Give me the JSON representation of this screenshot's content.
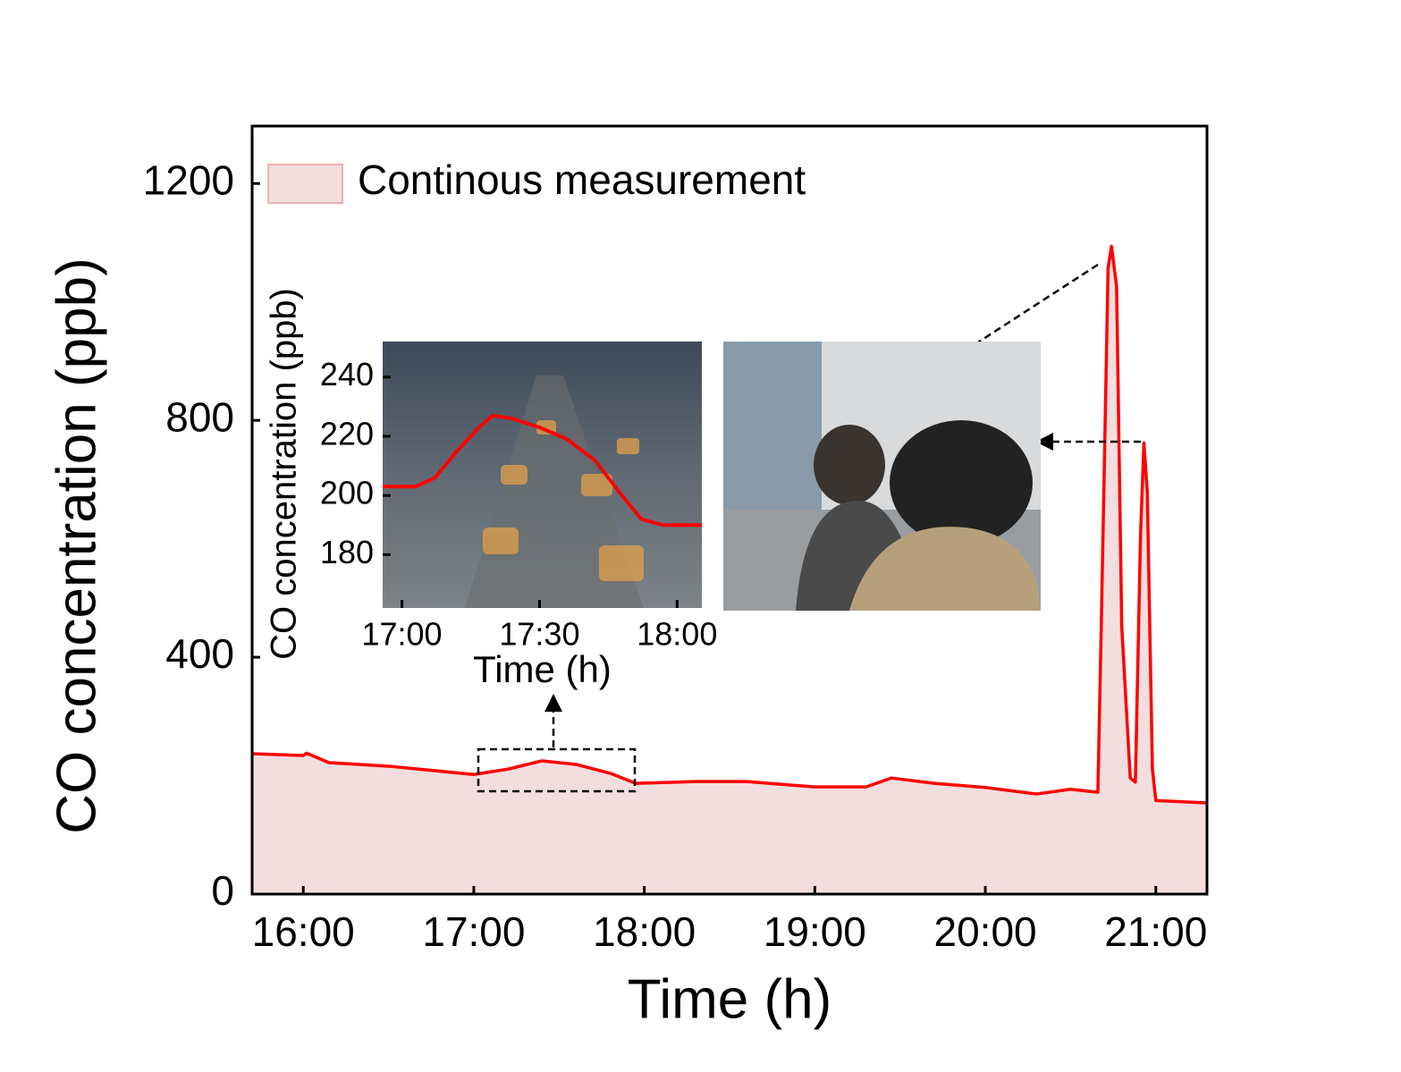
{
  "chart_data": [
    {
      "type": "area",
      "xlabel": "Time (h)",
      "ylabel": "CO concentration (ppb)",
      "xlim": [
        15.7,
        21.3
      ],
      "ylim": [
        0,
        1297
      ],
      "xticks": [
        {
          "value": 16,
          "label": "16:00"
        },
        {
          "value": 17,
          "label": "17:00"
        },
        {
          "value": 18,
          "label": "18:00"
        },
        {
          "value": 19,
          "label": "19:00"
        },
        {
          "value": 20,
          "label": "20:00"
        },
        {
          "value": 21,
          "label": "21:00"
        }
      ],
      "yticks": [
        0,
        400,
        800,
        1200
      ],
      "legend": "upper left",
      "series": [
        {
          "name": "Continous measurement",
          "color": "#ff0000",
          "fill": "#f2dede",
          "x": [
            15.7,
            16.0,
            16.02,
            16.15,
            16.5,
            17.0,
            17.2,
            17.4,
            17.6,
            17.8,
            17.95,
            18.3,
            18.6,
            19.0,
            19.3,
            19.45,
            19.7,
            20.0,
            20.3,
            20.5,
            20.66,
            20.68,
            20.72,
            20.74,
            20.77,
            20.8,
            20.85,
            20.88,
            20.91,
            20.93,
            20.95,
            20.98,
            21.0,
            21.3
          ],
          "values": [
            237,
            234,
            238,
            222,
            216,
            202,
            211,
            225,
            219,
            204,
            187,
            190,
            190,
            181,
            181,
            196,
            187,
            180,
            169,
            177,
            172,
            453,
            1057,
            1094,
            1026,
            453,
            196,
            189,
            604,
            762,
            679,
            211,
            158,
            154
          ]
        }
      ]
    },
    {
      "type": "line",
      "xlabel": "Time (h)",
      "ylabel": "CO concentration (ppb)",
      "xlim": [
        16.93,
        18.09
      ],
      "ylim": [
        162,
        252
      ],
      "xticks": [
        {
          "value": 17,
          "label": "17:00"
        },
        {
          "value": 17.5,
          "label": "17:30"
        },
        {
          "value": 18,
          "label": "18:00"
        }
      ],
      "yticks": [
        180,
        200,
        220,
        240
      ],
      "series": [
        {
          "color": "#ff0000",
          "x": [
            16.93,
            17.05,
            17.12,
            17.2,
            17.28,
            17.33,
            17.4,
            17.5,
            17.6,
            17.7,
            17.8,
            17.87,
            17.95,
            18.09
          ],
          "values": [
            203,
            203,
            206,
            215,
            223,
            227,
            226,
            223,
            219,
            212,
            200,
            192,
            190,
            190
          ]
        }
      ]
    }
  ]
}
